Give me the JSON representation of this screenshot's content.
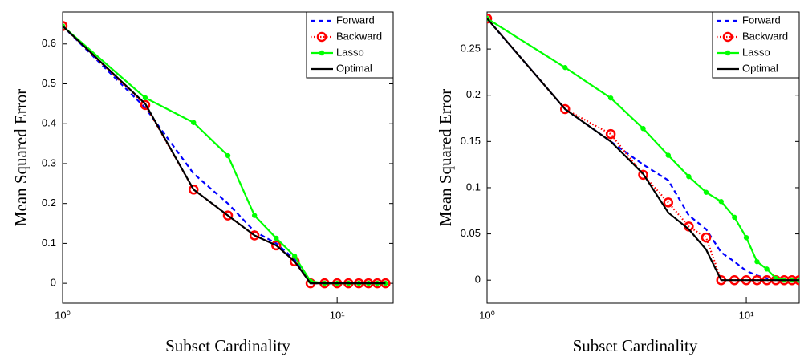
{
  "chart_data": [
    {
      "type": "line",
      "xlabel": "Subset Cardinality",
      "ylabel": "Mean Squared Error",
      "xscale": "log",
      "xlim": [
        1,
        16
      ],
      "ylim": [
        -0.05,
        0.68
      ],
      "xticks": [
        {
          "value": 1,
          "label": "10⁰"
        },
        {
          "value": 10,
          "label": "10¹"
        }
      ],
      "yticks": [
        0,
        0.1,
        0.2,
        0.3,
        0.4,
        0.5,
        0.6
      ],
      "legend": "upper right",
      "x": [
        1,
        2,
        3,
        4,
        5,
        6,
        7,
        8,
        9,
        10,
        11,
        12,
        13,
        14,
        15
      ],
      "series": [
        {
          "name": "Forward",
          "color": "#0000ff",
          "style": "dashed",
          "marker": null,
          "values": [
            0.645,
            0.44,
            0.275,
            0.2,
            0.13,
            0.1,
            0.06,
            0,
            0,
            0,
            0,
            0,
            0,
            0,
            0
          ]
        },
        {
          "name": "Backward",
          "color": "#ff0000",
          "style": "dotted",
          "marker": "circle",
          "values": [
            0.645,
            0.447,
            0.235,
            0.17,
            0.12,
            0.095,
            0.055,
            0,
            0,
            0,
            0,
            0,
            0,
            0,
            0
          ]
        },
        {
          "name": "Lasso",
          "color": "#00ff00",
          "style": "solid",
          "marker": "dot",
          "values": [
            0.645,
            0.465,
            0.403,
            0.32,
            0.17,
            0.113,
            0.068,
            0.005,
            0,
            0,
            0,
            0,
            0,
            0,
            0
          ]
        },
        {
          "name": "Optimal",
          "color": "#000000",
          "style": "solid",
          "marker": null,
          "values": [
            0.645,
            0.45,
            0.235,
            0.17,
            0.12,
            0.095,
            0.055,
            0,
            0,
            0,
            0,
            0,
            0,
            0,
            0
          ]
        }
      ]
    },
    {
      "type": "line",
      "xlabel": "Subset Cardinality",
      "ylabel": "Mean Squared Error",
      "xscale": "log",
      "xlim": [
        1,
        16
      ],
      "ylim": [
        -0.025,
        0.29
      ],
      "xticks": [
        {
          "value": 1,
          "label": "10⁰"
        },
        {
          "value": 10,
          "label": "10¹"
        }
      ],
      "yticks": [
        0,
        0.05,
        0.1,
        0.15,
        0.2,
        0.25
      ],
      "legend": "upper right",
      "x": [
        1,
        2,
        3,
        4,
        5,
        6,
        7,
        8,
        9,
        10,
        11,
        12,
        13,
        14,
        15,
        16
      ],
      "series": [
        {
          "name": "Forward",
          "color": "#0000ff",
          "style": "dashed",
          "marker": null,
          "values": [
            0.283,
            0.185,
            0.15,
            0.125,
            0.108,
            0.07,
            0.055,
            0.03,
            0.02,
            0.01,
            0.005,
            0.002,
            0,
            0,
            0,
            0
          ]
        },
        {
          "name": "Backward",
          "color": "#ff0000",
          "style": "dotted",
          "marker": "circle",
          "values": [
            0.283,
            0.185,
            0.158,
            0.114,
            0.084,
            0.058,
            0.046,
            0,
            0,
            0,
            0,
            0,
            0,
            0,
            0,
            0
          ]
        },
        {
          "name": "Lasso",
          "color": "#00ff00",
          "style": "solid",
          "marker": "dot",
          "values": [
            0.283,
            0.23,
            0.197,
            0.164,
            0.135,
            0.112,
            0.095,
            0.085,
            0.068,
            0.046,
            0.02,
            0.012,
            0.002,
            0,
            0,
            0
          ]
        },
        {
          "name": "Optimal",
          "color": "#000000",
          "style": "solid",
          "marker": null,
          "values": [
            0.283,
            0.185,
            0.15,
            0.115,
            0.073,
            0.055,
            0.033,
            0,
            0,
            0,
            0,
            0,
            0,
            0,
            0,
            0
          ]
        }
      ]
    }
  ]
}
